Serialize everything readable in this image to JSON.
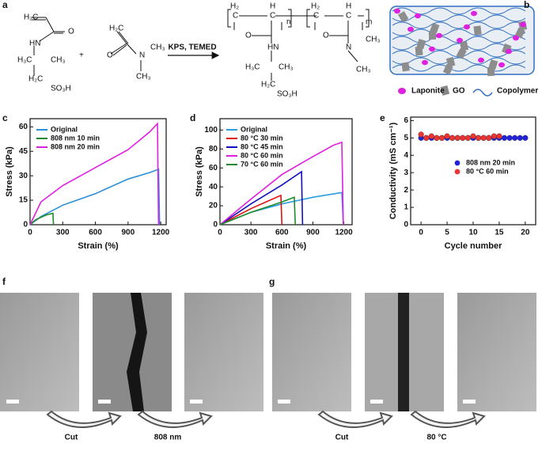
{
  "panel_labels": [
    "a",
    "b",
    "c",
    "d",
    "e",
    "f",
    "g"
  ],
  "scheme": {
    "labels": [
      "H₂C",
      "O",
      "HN",
      "H₃C",
      "CH₃",
      "H₂C",
      "SO₃H",
      "+",
      "H₂C",
      "O",
      "N",
      "CH₃",
      "CH₃",
      "KPS, TEMED",
      "H₂",
      "H",
      "C",
      "C",
      "n",
      "H₂",
      "H",
      "C",
      "C",
      "m",
      "O",
      "HN",
      "H₃C",
      "CH₃",
      "H₂C",
      "SO₃H",
      "O",
      "N",
      "CH₃",
      "CH₃"
    ]
  },
  "schematic": {
    "legend": [
      "Laponite",
      "GO",
      "Copolymer"
    ]
  },
  "chart_data": [
    {
      "type": "line",
      "x_label": "Strain (%)",
      "y_label": "Stress (kPa)",
      "xlim": [
        0,
        1250
      ],
      "ylim": [
        0,
        65
      ],
      "xticks": [
        0,
        300,
        600,
        900,
        1200
      ],
      "yticks": [
        0,
        15,
        30,
        45,
        60
      ],
      "legend": "upper left",
      "series": [
        {
          "name": "Original",
          "color": "#2a8fd8",
          "x": [
            0,
            100,
            300,
            600,
            900,
            1100,
            1180,
            1190
          ],
          "values": [
            0,
            5,
            12,
            19,
            28,
            32,
            34,
            0
          ]
        },
        {
          "name": "808 nm 10 min",
          "color": "#1f8a2a",
          "x": [
            0,
            50,
            150,
            210,
            215
          ],
          "values": [
            0,
            3,
            6,
            7,
            0
          ]
        },
        {
          "name": "808 nm 20 min",
          "color": "#e020e0",
          "x": [
            0,
            100,
            300,
            600,
            900,
            1100,
            1170,
            1180
          ],
          "values": [
            0,
            14,
            24,
            35,
            46,
            57,
            62,
            0
          ]
        }
      ]
    },
    {
      "type": "line",
      "x_label": "Strain (%)",
      "y_label": "Stress (kPa)",
      "xlim": [
        0,
        1280
      ],
      "ylim": [
        0,
        112
      ],
      "xticks": [
        0,
        300,
        600,
        900,
        1200
      ],
      "yticks": [
        0,
        20,
        40,
        60,
        80,
        100
      ],
      "legend": "upper left",
      "series": [
        {
          "name": "Original",
          "color": "#2a9fe0",
          "x": [
            0,
            300,
            600,
            900,
            1180,
            1195
          ],
          "values": [
            0,
            13,
            22,
            29,
            34,
            0
          ]
        },
        {
          "name": "80 °C 30 min",
          "color": "#e01010",
          "x": [
            0,
            300,
            590,
            600
          ],
          "values": [
            0,
            17,
            31,
            0
          ]
        },
        {
          "name": "80 °C 45 min",
          "color": "#1010c0",
          "x": [
            0,
            300,
            600,
            790,
            800
          ],
          "values": [
            0,
            22,
            42,
            56,
            0
          ]
        },
        {
          "name": "80 °C 60 min",
          "color": "#e020e0",
          "x": [
            0,
            300,
            600,
            900,
            1100,
            1180,
            1195
          ],
          "values": [
            0,
            27,
            53,
            72,
            84,
            87,
            0
          ]
        },
        {
          "name": "70 °C 60 min",
          "color": "#1f8a2a",
          "x": [
            0,
            300,
            600,
            720,
            730
          ],
          "values": [
            0,
            13,
            24,
            29,
            0
          ]
        }
      ]
    },
    {
      "type": "line",
      "markers": true,
      "x_label": "Cycle number",
      "y_label": "Conductivity (mS cm⁻¹)",
      "xlim": [
        -2,
        22
      ],
      "ylim": [
        0,
        6.2
      ],
      "xticks": [
        0,
        5,
        10,
        15,
        20
      ],
      "yticks": [
        0,
        1,
        2,
        3,
        4,
        5,
        6
      ],
      "legend": "center right",
      "x": [
        0,
        1,
        2,
        3,
        4,
        5,
        6,
        7,
        8,
        9,
        10,
        11,
        12,
        13,
        14,
        15,
        16,
        17,
        18,
        19,
        20
      ],
      "series": [
        {
          "name": "808 nm 20 min",
          "color": "#2222dd",
          "values": [
            5.0,
            5.0,
            5.0,
            5.0,
            5.0,
            5.0,
            5.0,
            5.0,
            5.0,
            5.0,
            5.0,
            5.0,
            5.0,
            5.0,
            5.0,
            5.0,
            5.0,
            5.0,
            5.0,
            5.0,
            5.0
          ]
        },
        {
          "name": "80 °C  60 min",
          "color": "#ee3333",
          "values": [
            5.2,
            5.0,
            5.1,
            5.0,
            5.0,
            5.1,
            5.0,
            5.0,
            5.0,
            5.0,
            5.1,
            5.0,
            5.0,
            5.0,
            5.1,
            5.1,
            null,
            null,
            null,
            null,
            null
          ]
        }
      ]
    }
  ],
  "panel_f": {
    "steps": [
      "Cut",
      "808 nm"
    ]
  },
  "panel_g": {
    "steps": [
      "Cut",
      "80 °C"
    ]
  }
}
